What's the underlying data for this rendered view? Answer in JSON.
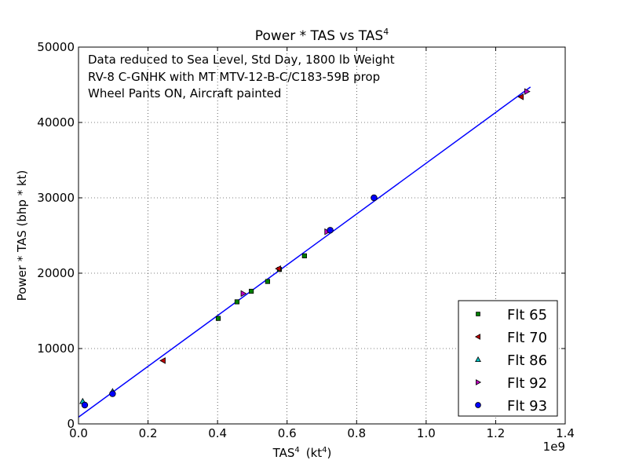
{
  "chart_data": {
    "type": "scatter",
    "title": "Power  *  TAS  vs  TAS",
    "title_sup": "4",
    "xlabel": "TAS",
    "xlabel_sup": "4",
    "xlabel_unit": "(kt",
    "xlabel_unit_sup": "4",
    "xlabel_unit_close": ")",
    "ylabel": "Power * TAS (bhp * kt)",
    "x_offset_label": "1e9",
    "xlim": [
      0.0,
      1.4
    ],
    "ylim": [
      0,
      50000
    ],
    "x_ticks": [
      "0.0",
      "0.2",
      "0.4",
      "0.6",
      "0.8",
      "1.0",
      "1.2",
      "1.4"
    ],
    "y_ticks": [
      "0",
      "10000",
      "20000",
      "30000",
      "40000",
      "50000"
    ],
    "grid": true,
    "legend_position": "lower-right",
    "annotations": [
      "Data reduced to Sea Level, Std Day, 1800 lb Weight",
      "RV-8 C-GNHK with MT MTV-12-B-C/C183-59B prop",
      "Wheel Pants ON, Aircraft painted"
    ],
    "fit_line": {
      "color": "#0000ff",
      "x": [
        0.0,
        1.3
      ],
      "y": [
        900,
        44700
      ]
    },
    "series": [
      {
        "name": "Flt 65",
        "marker": "square",
        "color": "#007f00",
        "points": [
          [
            0.402,
            14000
          ],
          [
            0.456,
            16200
          ],
          [
            0.497,
            17600
          ],
          [
            0.544,
            18900
          ],
          [
            0.578,
            20500
          ],
          [
            0.65,
            22300
          ]
        ]
      },
      {
        "name": "Flt 70",
        "marker": "triangle-left",
        "color": "#bf0000",
        "points": [
          [
            0.243,
            8400
          ],
          [
            0.575,
            20600
          ],
          [
            1.273,
            43400
          ]
        ]
      },
      {
        "name": "Flt 86",
        "marker": "triangle-up",
        "color": "#00bfbf",
        "points": [
          [
            0.012,
            3000
          ],
          [
            0.098,
            4300
          ]
        ]
      },
      {
        "name": "Flt 92",
        "marker": "triangle-right",
        "color": "#bf00bf",
        "points": [
          [
            0.474,
            17300
          ],
          [
            0.715,
            25500
          ],
          [
            1.29,
            44100
          ]
        ]
      },
      {
        "name": "Flt 93",
        "marker": "circle",
        "color": "#0000ff",
        "points": [
          [
            0.018,
            2500
          ],
          [
            0.098,
            4000
          ],
          [
            0.724,
            25700
          ],
          [
            0.85,
            30000
          ]
        ]
      }
    ]
  }
}
